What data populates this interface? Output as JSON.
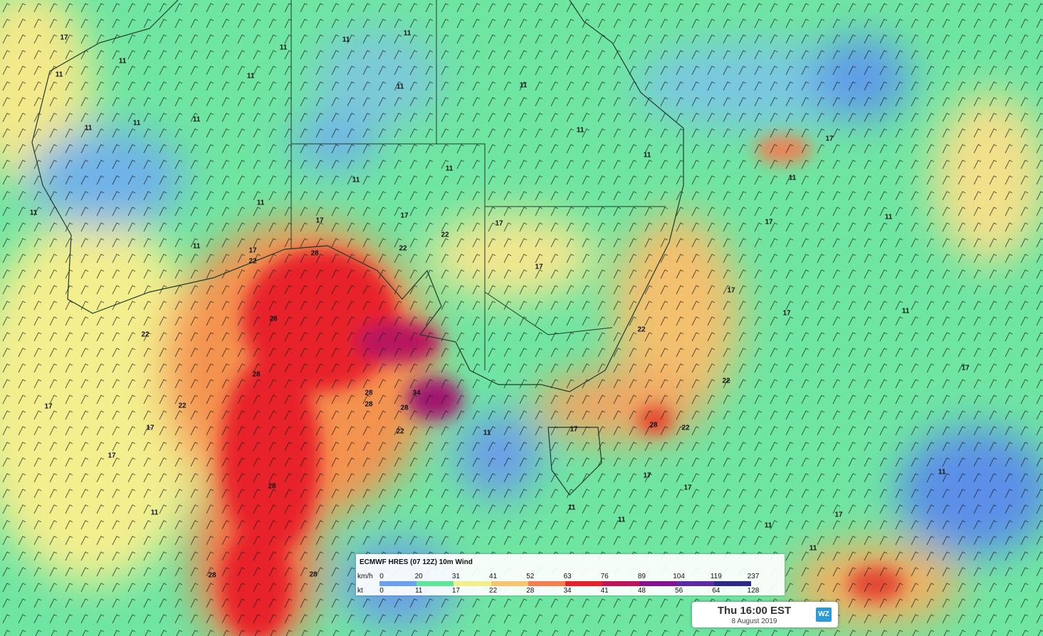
{
  "legend": {
    "title": "ECMWF HRES (07 12Z) 10m Wind",
    "units": [
      "km/h",
      "kt"
    ],
    "kmh": [
      0,
      20,
      31,
      41,
      52,
      63,
      76,
      89,
      104,
      119,
      237
    ],
    "kt": [
      0,
      11,
      17,
      22,
      28,
      34,
      41,
      48,
      56,
      64,
      128
    ],
    "colors": [
      "#6b9ff0",
      "#5fe59a",
      "#f3ef8a",
      "#f6c56e",
      "#f47f4e",
      "#e8202a",
      "#c0135c",
      "#86128f",
      "#5b2aa6",
      "#2b2a86"
    ]
  },
  "time_box": {
    "time": "Thu 16:00 EST",
    "date": "8 August 2019",
    "logo": "WZ"
  },
  "contour_labels": [
    "17",
    "11",
    "11",
    "11",
    "11",
    "11",
    "11",
    "11",
    "11",
    "11",
    "11",
    "11",
    "11",
    "11",
    "11",
    "11",
    "11",
    "11",
    "11",
    "17",
    "17",
    "17",
    "17",
    "17",
    "22",
    "22",
    "22",
    "28",
    "28",
    "28",
    "28",
    "28",
    "28",
    "34",
    "22",
    "22",
    "17",
    "17",
    "17",
    "11",
    "28",
    "28",
    "28",
    "22",
    "11",
    "17",
    "11",
    "11",
    "17",
    "17",
    "28",
    "22",
    "22",
    "22",
    "17",
    "17",
    "17",
    "11",
    "17",
    "11",
    "11",
    "17",
    "17",
    "11",
    "11",
    "11"
  ]
}
